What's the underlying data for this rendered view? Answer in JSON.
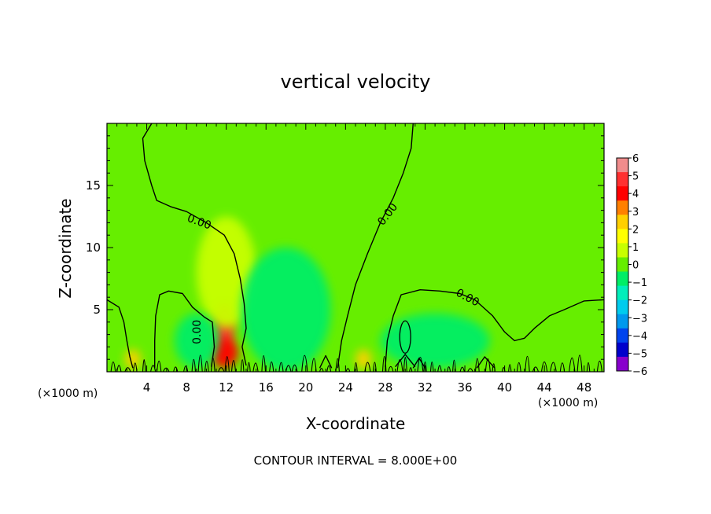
{
  "chart_data": {
    "type": "heatmap",
    "title": "vertical velocity",
    "xlabel": "X-coordinate",
    "ylabel": "Z-coordinate",
    "x_unit_label": "(×1000 m)",
    "x_unit_label_right": "(×1000 m)",
    "xlim": [
      0,
      50
    ],
    "ylim": [
      0,
      20
    ],
    "x_ticks": [
      4,
      8,
      12,
      16,
      20,
      24,
      28,
      32,
      36,
      40,
      44,
      48
    ],
    "y_ticks": [
      5,
      10,
      15
    ],
    "background_value": 0,
    "contour_level_label": "0.00",
    "contour_labels": [
      {
        "text": "0.00",
        "x": 9.3,
        "y": 12.1
      },
      {
        "text": "0.00",
        "x": 28.2,
        "y": 12.7
      },
      {
        "text": "0.00",
        "x": 36.3,
        "y": 6.0
      },
      {
        "text": "0.00",
        "x": 9.0,
        "y": 3.2
      }
    ],
    "features": [
      {
        "x": 11.8,
        "z": 3.5,
        "value": 5
      },
      {
        "x": 11.8,
        "z": 1.5,
        "value": 4
      },
      {
        "x": 12.0,
        "z": 8.0,
        "value": 1
      },
      {
        "x": 18.0,
        "z": 5.0,
        "value": -1
      },
      {
        "x": 9.0,
        "z": 2.5,
        "value": -1
      },
      {
        "x": 25.8,
        "z": 1.0,
        "value": 3
      },
      {
        "x": 2.6,
        "z": 1.0,
        "value": 3
      },
      {
        "x": 33.0,
        "z": 2.5,
        "value": -1
      }
    ],
    "colorbar": {
      "levels": [
        "6",
        "5",
        "4",
        "3",
        "2",
        "1",
        "0",
        "−1",
        "−2",
        "−3",
        "−4",
        "−5",
        "−6"
      ],
      "colors": [
        "#f08c8c",
        "#ff3030",
        "#ff0000",
        "#ff8000",
        "#ffd000",
        "#ffff00",
        "#c8ff00",
        "#66ee00",
        "#00ee66",
        "#00eebb",
        "#00ccee",
        "#0099ee",
        "#0044ee",
        "#0000cc",
        "#8800cc"
      ]
    },
    "footer": "CONTOUR INTERVAL = 8.000E+00"
  }
}
